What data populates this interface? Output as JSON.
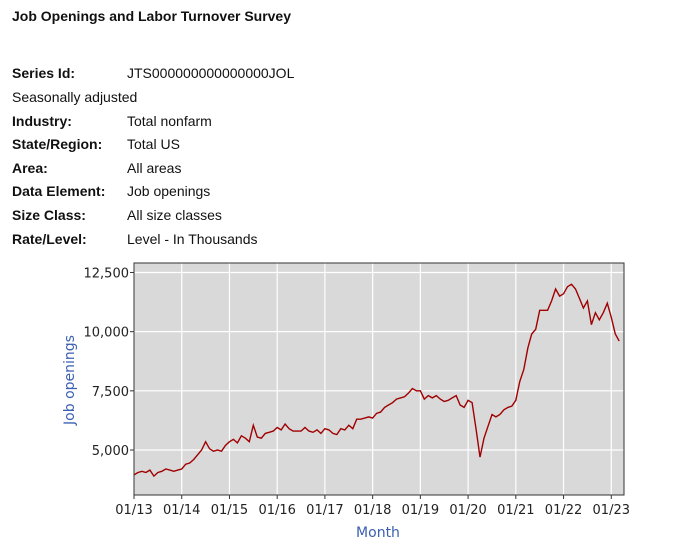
{
  "header": {
    "title": "Job Openings and Labor Turnover Survey"
  },
  "info": {
    "series_id_label": "Series Id:",
    "series_id": "JTS000000000000000JOL",
    "adjustment": "Seasonally adjusted",
    "rows": [
      {
        "label": "Industry:",
        "value": "Total nonfarm"
      },
      {
        "label": "State/Region:",
        "value": "Total US"
      },
      {
        "label": "Area:",
        "value": "All areas"
      },
      {
        "label": "Data Element:",
        "value": "Job openings"
      },
      {
        "label": "Size Class:",
        "value": "All size classes"
      },
      {
        "label": "Rate/Level:",
        "value": "Level - In Thousands"
      }
    ]
  },
  "chart_data": {
    "type": "line",
    "xlabel": "Month",
    "ylabel": "Job openings",
    "x_start": "2013-01",
    "x_end": "2023-03",
    "x_frequency": "monthly",
    "xticks": [
      "01/13",
      "01/14",
      "01/15",
      "01/16",
      "01/17",
      "01/18",
      "01/19",
      "01/20",
      "01/21",
      "01/22",
      "01/23"
    ],
    "yticks": [
      5000,
      7500,
      10000,
      12500
    ],
    "ytick_labels": [
      "5,000",
      "7,500",
      "10,000",
      "12,500"
    ],
    "ylim": [
      3100,
      12900
    ],
    "grid": true,
    "colors": {
      "line": "#a00000",
      "background": "#d9d9d9",
      "grid": "#ffffff",
      "axis_label": "#3a5fb0"
    },
    "values": [
      3950,
      4050,
      4100,
      4050,
      4150,
      3900,
      4050,
      4100,
      4200,
      4150,
      4100,
      4150,
      4200,
      4400,
      4450,
      4600,
      4800,
      5000,
      5350,
      5050,
      4950,
      5000,
      4950,
      5200,
      5350,
      5450,
      5300,
      5600,
      5500,
      5350,
      6050,
      5550,
      5500,
      5700,
      5750,
      5800,
      5950,
      5850,
      6100,
      5900,
      5800,
      5800,
      5800,
      5950,
      5800,
      5750,
      5850,
      5700,
      5900,
      5850,
      5700,
      5650,
      5900,
      5850,
      6050,
      5900,
      6300,
      6300,
      6350,
      6400,
      6350,
      6550,
      6600,
      6800,
      6900,
      7000,
      7150,
      7200,
      7250,
      7400,
      7600,
      7500,
      7500,
      7150,
      7300,
      7200,
      7300,
      7150,
      7050,
      7100,
      7200,
      7300,
      6900,
      6800,
      7100,
      7000,
      5900,
      4700,
      5500,
      6000,
      6500,
      6400,
      6500,
      6700,
      6800,
      6850,
      7100,
      7900,
      8400,
      9300,
      9900,
      10100,
      10900,
      10900,
      10900,
      11300,
      11800,
      11500,
      11600,
      11900,
      12000,
      11800,
      11400,
      11000,
      11300,
      10300,
      10800,
      10500,
      10800,
      11200,
      10600,
      9900,
      9600
    ]
  }
}
